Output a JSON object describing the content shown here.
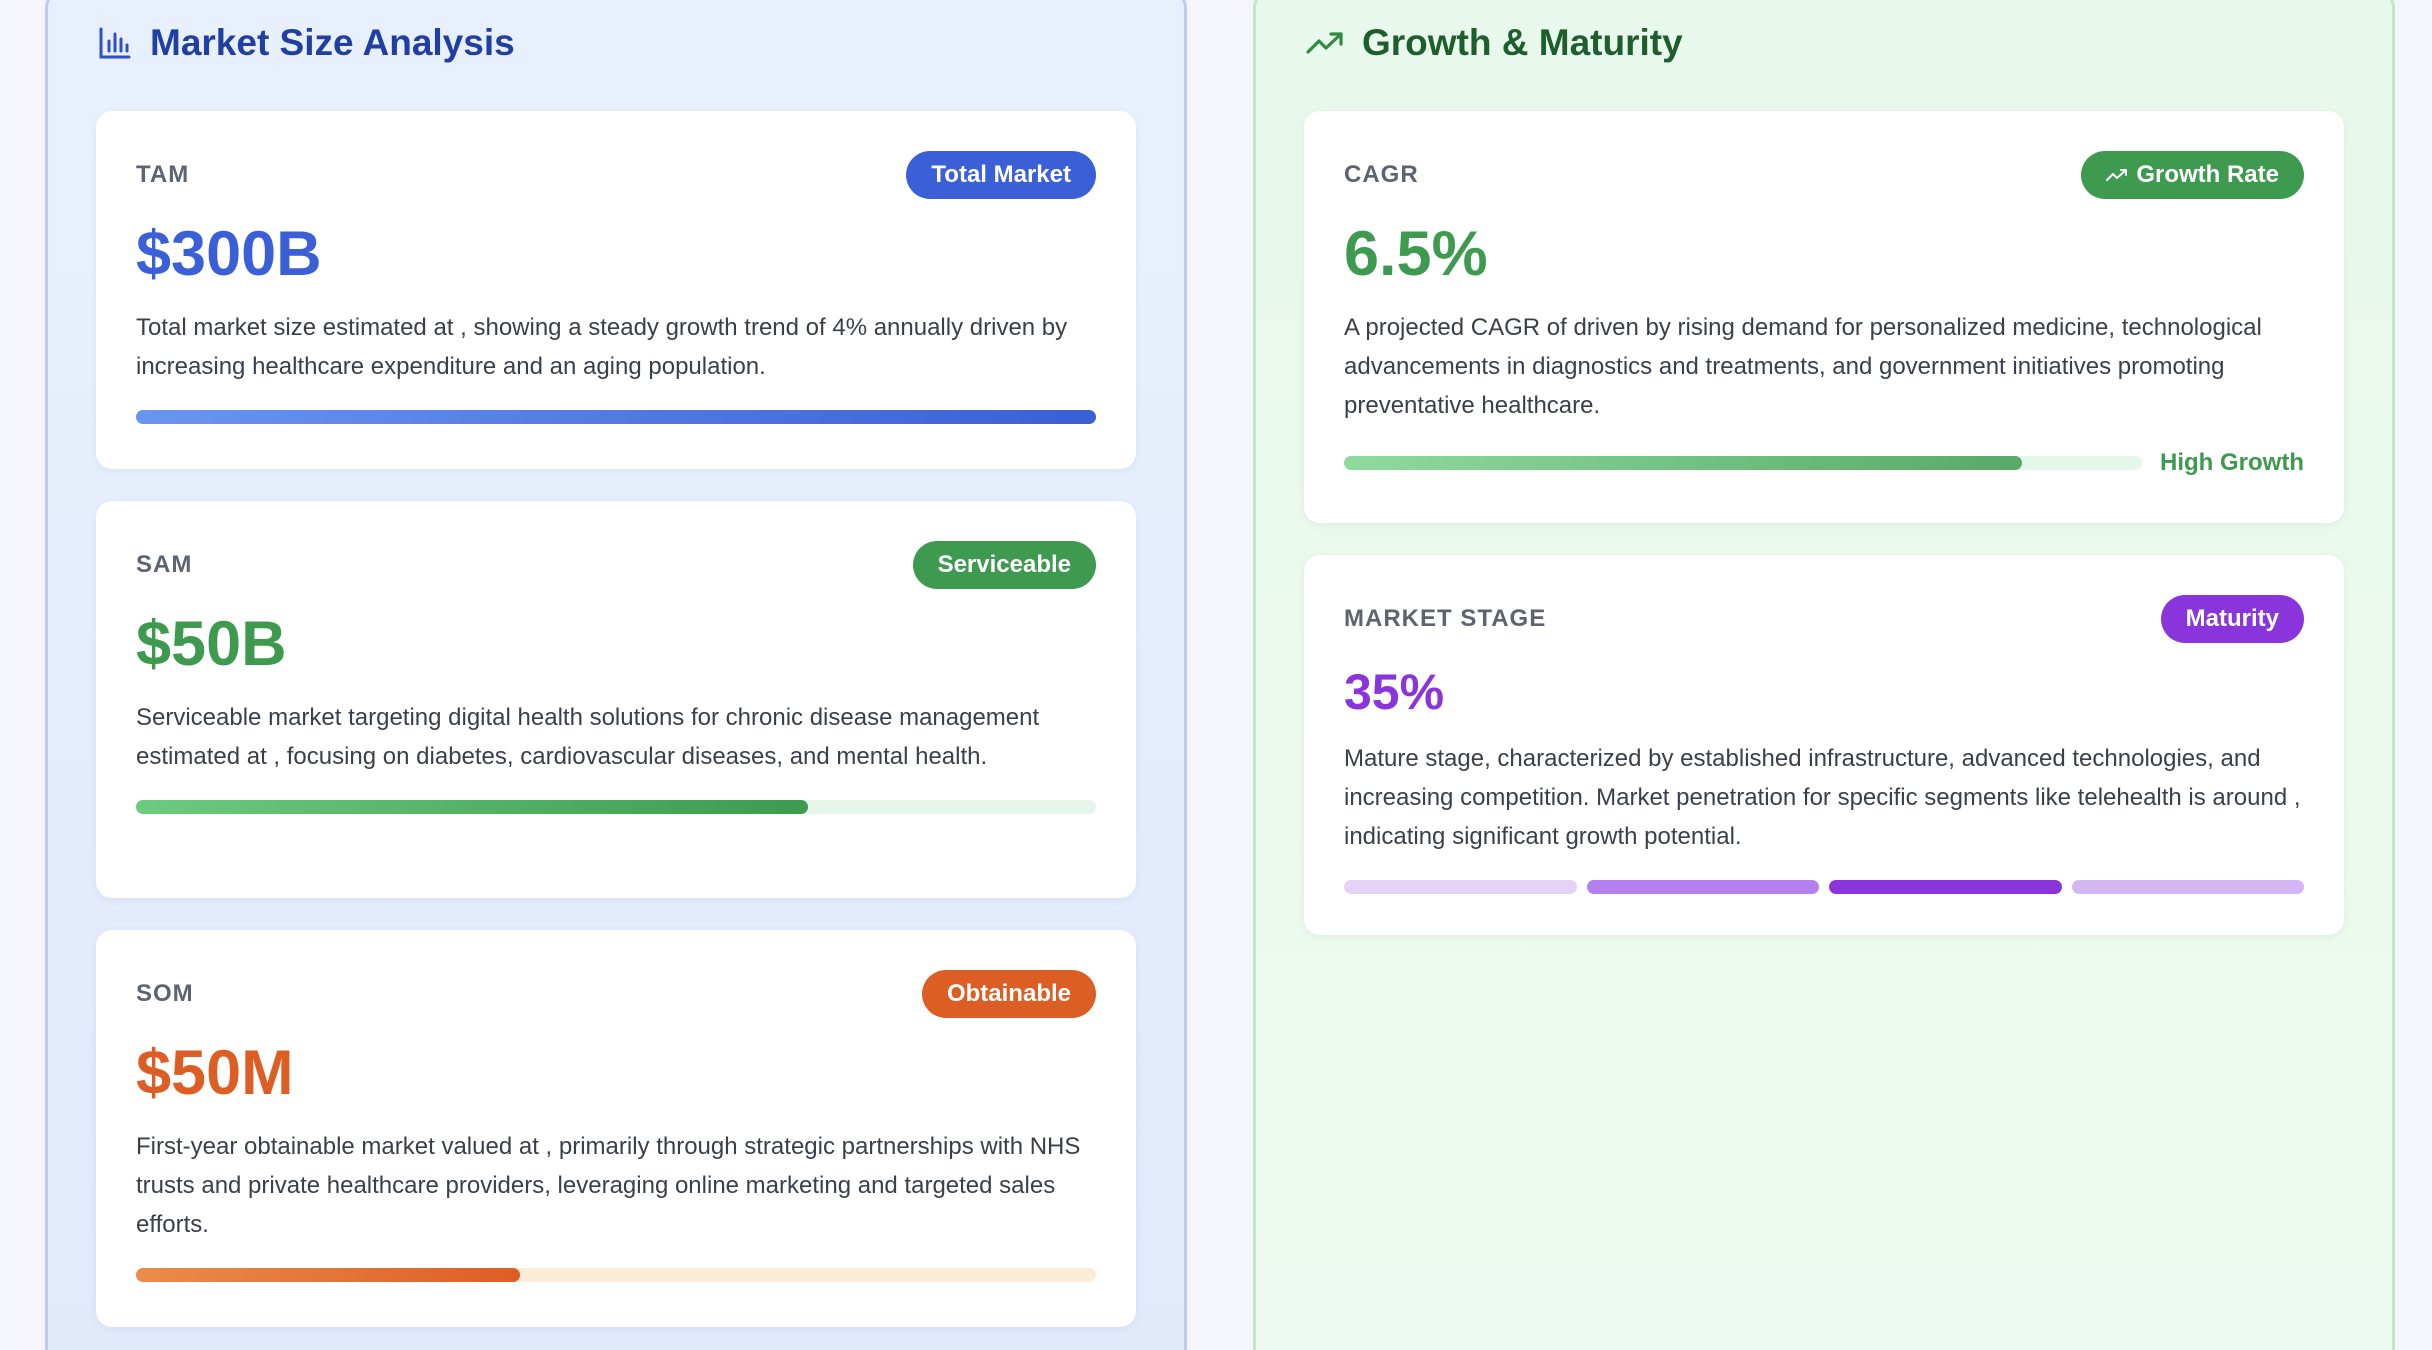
{
  "left_panel": {
    "title": "Market Size Analysis",
    "icon": "bar-chart-icon",
    "cards": [
      {
        "label": "TAM",
        "badge": "Total Market",
        "value": "$300B",
        "description": "Total market size estimated at , showing a steady growth trend of 4% annually driven by increasing healthcare expenditure and an aging population.",
        "progress": 1.0,
        "color": "#3a5fd6"
      },
      {
        "label": "SAM",
        "badge": "Serviceable",
        "value": "$50B",
        "description": "Serviceable market targeting digital health solutions for chronic disease management estimated at , focusing on diabetes, cardiovascular diseases, and mental health.",
        "progress": 0.7,
        "color": "#3d9a4e"
      },
      {
        "label": "SOM",
        "badge": "Obtainable",
        "value": "$50M",
        "description": "First-year obtainable market valued at , primarily through strategic partnerships with NHS trusts and private healthcare providers, leveraging online marketing and targeted sales efforts.",
        "progress": 0.4,
        "color": "#dd5e25"
      }
    ]
  },
  "right_panel": {
    "title": "Growth & Maturity",
    "icon": "trending-up-icon",
    "cagr_card": {
      "label": "CAGR",
      "badge": "Growth Rate",
      "value": "6.5%",
      "description": "A projected CAGR of driven by rising demand for personalized medicine, technological advancements in diagnostics and treatments, and government initiatives promoting preventative healthcare.",
      "progress": 0.85,
      "progress_label": "High Growth",
      "color": "#3d9a4e"
    },
    "stage_card": {
      "label": "MARKET STAGE",
      "badge": "Maturity",
      "value": "35%",
      "description": "Mature stage, characterized by established infrastructure, advanced technologies, and increasing competition. Market penetration for specific segments like telehealth is around , indicating significant growth potential.",
      "active_segment": 3,
      "segments": 4,
      "color": "#8a35dc"
    }
  }
}
